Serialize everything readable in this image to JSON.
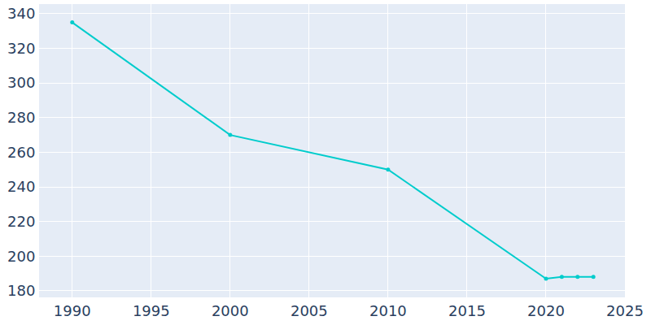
{
  "chart_data": {
    "type": "line",
    "x": [
      1990,
      2000,
      2010,
      2020,
      2021,
      2022,
      2023
    ],
    "values": [
      335,
      270,
      250,
      187,
      188,
      188,
      188
    ],
    "color": "#00cccc",
    "marker": "circle",
    "line_style": "solid",
    "xlim": [
      1987.9,
      2025
    ],
    "ylim": [
      176.2,
      345.6
    ],
    "xticks": [
      1990,
      1995,
      2000,
      2005,
      2010,
      2015,
      2020,
      2025
    ],
    "yticks": [
      180,
      200,
      220,
      240,
      260,
      280,
      300,
      320,
      340
    ],
    "grid": true
  }
}
